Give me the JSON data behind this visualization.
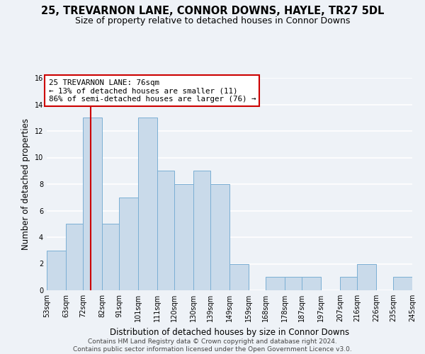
{
  "title": "25, TREVARNON LANE, CONNOR DOWNS, HAYLE, TR27 5DL",
  "subtitle": "Size of property relative to detached houses in Connor Downs",
  "xlabel": "Distribution of detached houses by size in Connor Downs",
  "ylabel": "Number of detached properties",
  "bin_edges": [
    53,
    63,
    72,
    82,
    91,
    101,
    111,
    120,
    130,
    139,
    149,
    159,
    168,
    178,
    187,
    197,
    207,
    216,
    226,
    235,
    245
  ],
  "counts": [
    3,
    5,
    13,
    5,
    7,
    13,
    9,
    8,
    9,
    8,
    2,
    0,
    1,
    1,
    1,
    0,
    1,
    2,
    0,
    1
  ],
  "bar_color": "#c9daea",
  "bar_edgecolor": "#7bafd4",
  "marker_value": 76,
  "marker_line_color": "#cc0000",
  "annotation_line1": "25 TREVARNON LANE: 76sqm",
  "annotation_line2": "← 13% of detached houses are smaller (11)",
  "annotation_line3": "86% of semi-detached houses are larger (76) →",
  "annotation_box_edgecolor": "#cc0000",
  "annotation_box_facecolor": "white",
  "ylim": [
    0,
    16
  ],
  "yticks": [
    0,
    2,
    4,
    6,
    8,
    10,
    12,
    14,
    16
  ],
  "tick_labels": [
    "53sqm",
    "63sqm",
    "72sqm",
    "82sqm",
    "91sqm",
    "101sqm",
    "111sqm",
    "120sqm",
    "130sqm",
    "139sqm",
    "149sqm",
    "159sqm",
    "168sqm",
    "178sqm",
    "187sqm",
    "197sqm",
    "207sqm",
    "216sqm",
    "226sqm",
    "235sqm",
    "245sqm"
  ],
  "footer_line1": "Contains HM Land Registry data © Crown copyright and database right 2024.",
  "footer_line2": "Contains public sector information licensed under the Open Government Licence v3.0.",
  "background_color": "#eef2f7",
  "grid_color": "#ffffff",
  "title_fontsize": 10.5,
  "subtitle_fontsize": 9,
  "axis_label_fontsize": 8.5,
  "tick_fontsize": 7,
  "annotation_fontsize": 7.8,
  "footer_fontsize": 6.5
}
